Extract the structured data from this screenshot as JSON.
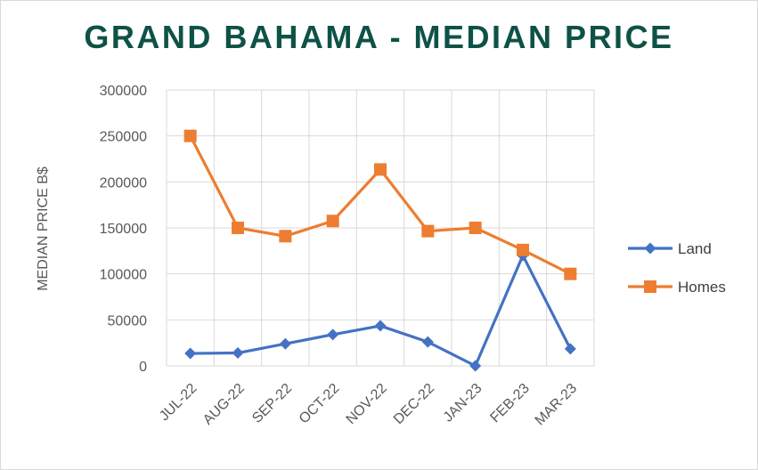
{
  "chart_data": {
    "type": "line",
    "title": "GRAND BAHAMA - MEDIAN PRICE",
    "ylabel": "MEDIAN PRICE B$",
    "xlabel": "",
    "categories": [
      "JUL-22",
      "AUG-22",
      "SEP-22",
      "OCT-22",
      "NOV-22",
      "DEC-22",
      "JAN-23",
      "FEB-23",
      "MAR-23"
    ],
    "ylim": [
      0,
      300000
    ],
    "yticks": [
      0,
      50000,
      100000,
      150000,
      200000,
      250000,
      300000
    ],
    "grid": true,
    "legend_position": "right",
    "series": [
      {
        "name": "Land",
        "color": "#4472c4",
        "marker": "diamond",
        "values": [
          13500,
          14000,
          24000,
          34000,
          43500,
          26000,
          0,
          120000,
          18500
        ]
      },
      {
        "name": "Homes",
        "color": "#ed7d31",
        "marker": "square",
        "values": [
          250000,
          150000,
          141000,
          157500,
          213500,
          146500,
          150000,
          126000,
          100000
        ]
      }
    ]
  }
}
